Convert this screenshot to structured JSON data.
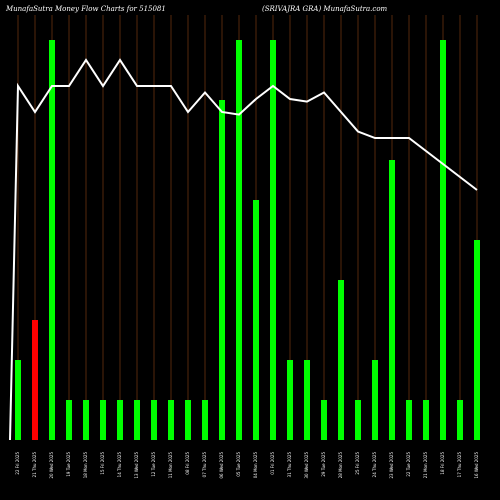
{
  "chart_data": {
    "type": "bar",
    "title_left": "MunafaSutra  Money Flow  Charts for 515081",
    "title_right": "(SRIVAJRA GRA) MunafaSutra.com",
    "categories": [
      "22 Fri 2025",
      "21 Thu 2025",
      "20 Wed 2025",
      "19 Tue 2025",
      "18 Mon 2025",
      "15 Fri 2025",
      "14 Thu 2025",
      "13 Wed 2025",
      "12 Tue 2025",
      "11 Mon 2025",
      "08 Fri 2025",
      "07 Thu 2025",
      "06 Wed 2025",
      "05 Tue 2025",
      "04 Mon 2025",
      "01 Fri 2025",
      "31 Thu 2025",
      "30 Wed 2025",
      "29 Tue 2025",
      "28 Mon 2025",
      "25 Fri 2025",
      "24 Thu 2025",
      "23 Wed 2025",
      "22 Tue 2025",
      "21 Mon 2025",
      "18 Fri 2025",
      "17 Thu 2025",
      "16 Wed 2025"
    ],
    "colors": [
      "green",
      "red",
      "green",
      "green",
      "green",
      "green",
      "green",
      "green",
      "green",
      "green",
      "green",
      "green",
      "green",
      "green",
      "green",
      "green",
      "green",
      "green",
      "green",
      "green",
      "green",
      "green",
      "green",
      "green",
      "green",
      "green",
      "green",
      "green"
    ],
    "volume_bars": [
      2,
      3,
      10,
      1,
      1,
      1,
      1,
      1,
      1,
      1,
      1,
      1,
      8.5,
      10,
      6,
      10,
      2,
      2,
      1,
      4,
      1,
      2,
      7,
      1,
      1,
      10,
      1,
      5
    ],
    "price_line": [
      2.45,
      2.43,
      2.45,
      2.45,
      2.47,
      2.45,
      2.47,
      2.45,
      2.45,
      2.45,
      2.43,
      2.445,
      2.43,
      2.428,
      2.44,
      2.45,
      2.44,
      2.438,
      2.445,
      2.43,
      2.415,
      2.41,
      2.41,
      2.41,
      2.4,
      2.39,
      2.38,
      2.37
    ],
    "colors_hex": {
      "green": "#00ff00",
      "red": "#ff0000",
      "line": "#ffffff",
      "gridline": "#8b4513",
      "background": "#000000",
      "text": "#ffffff"
    }
  }
}
